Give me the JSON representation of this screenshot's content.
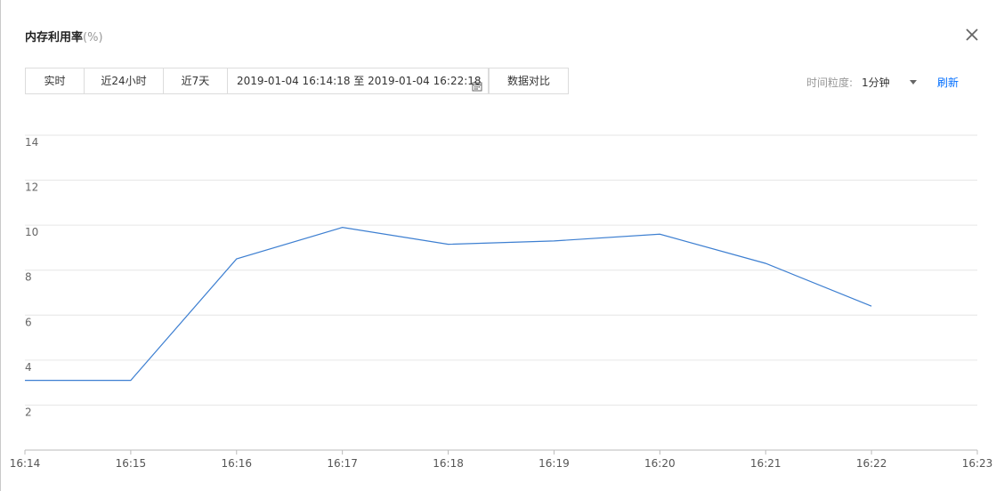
{
  "dialog": {
    "title": "内存利用率",
    "unit": "(%)"
  },
  "toolbar": {
    "realtime": "实时",
    "last24h": "近24小时",
    "last7d": "近7天",
    "date_range": "2019-01-04 16:14:18 至 2019-01-04 16:22:18",
    "compare": "数据对比"
  },
  "granularity": {
    "label": "时间粒度:",
    "value": "1分钟",
    "refresh": "刷新"
  },
  "colors": {
    "line": "#3d7fd1",
    "link": "#006eff"
  },
  "chart_data": {
    "type": "line",
    "categories": [
      "16:14",
      "16:15",
      "16:16",
      "16:17",
      "16:18",
      "16:19",
      "16:20",
      "16:21",
      "16:22",
      "16:23"
    ],
    "series": [
      {
        "values": [
          3.1,
          3.1,
          8.5,
          9.9,
          9.15,
          9.3,
          9.6,
          8.3,
          6.4,
          null
        ]
      }
    ],
    "yticks": [
      2,
      4,
      6,
      8,
      10,
      12,
      14
    ],
    "ylim": [
      0,
      14
    ],
    "grid": true
  }
}
